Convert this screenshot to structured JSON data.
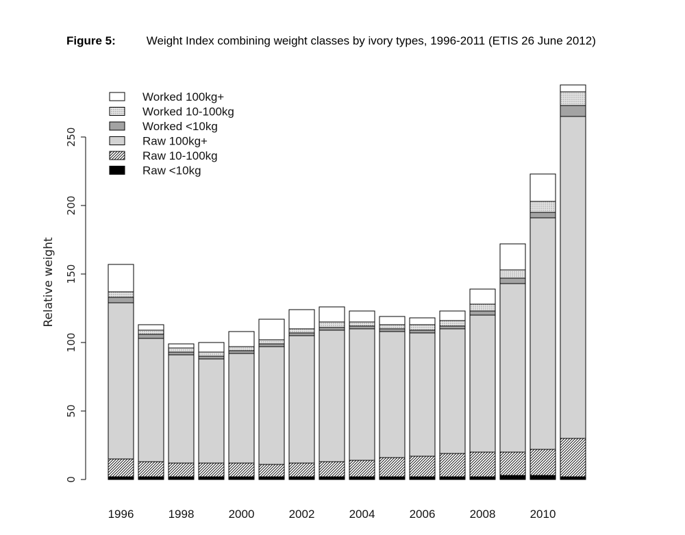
{
  "caption": {
    "label": "Figure 5:",
    "text": "Weight Index combining weight classes by ivory types, 1996-2011 (ETIS 26 June 2012)"
  },
  "chart_data": {
    "type": "bar",
    "stacked": true,
    "ylabel": "Relative weight",
    "xlabel": "",
    "ylim": [
      0,
      290
    ],
    "yticks": [
      0,
      50,
      100,
      150,
      200,
      250
    ],
    "categories": [
      "1996",
      "1997",
      "1998",
      "1999",
      "2000",
      "2001",
      "2002",
      "2003",
      "2004",
      "2005",
      "2006",
      "2007",
      "2008",
      "2009",
      "2010",
      "2011"
    ],
    "xtick_labels": [
      "1996",
      "1998",
      "2000",
      "2002",
      "2004",
      "2006",
      "2008",
      "2010"
    ],
    "legend_position": "top-left",
    "series": [
      {
        "name": "Raw <10kg",
        "fill": "solid",
        "color": "#000000",
        "values": [
          2,
          2,
          2,
          2,
          2,
          2,
          2,
          2,
          2,
          2,
          2,
          2,
          2,
          3,
          3,
          2
        ]
      },
      {
        "name": "Raw 10-100kg",
        "fill": "hatch",
        "color": "#000000",
        "values": [
          13,
          11,
          10,
          10,
          10,
          9,
          10,
          11,
          12,
          14,
          15,
          17,
          18,
          17,
          19,
          28
        ]
      },
      {
        "name": "Raw 100kg+",
        "fill": "solid",
        "color": "#d3d3d3",
        "values": [
          114,
          90,
          79,
          76,
          80,
          86,
          93,
          96,
          96,
          92,
          90,
          91,
          100,
          123,
          169,
          235
        ]
      },
      {
        "name": "Worked <10kg",
        "fill": "solid",
        "color": "#a3a3a3",
        "values": [
          4,
          3,
          2,
          2,
          2,
          2,
          2,
          2,
          2,
          2,
          2,
          2,
          3,
          4,
          4,
          8
        ]
      },
      {
        "name": "Worked 10-100kg",
        "fill": "dots",
        "color": "#c8c8c8",
        "values": [
          4,
          3,
          3,
          3,
          3,
          3,
          3,
          4,
          3,
          3,
          4,
          4,
          5,
          6,
          8,
          10
        ]
      },
      {
        "name": "Worked 100kg+",
        "fill": "solid",
        "color": "#ffffff",
        "values": [
          20,
          4,
          3,
          7,
          11,
          15,
          14,
          11,
          8,
          6,
          5,
          7,
          11,
          19,
          20,
          5
        ]
      }
    ]
  }
}
